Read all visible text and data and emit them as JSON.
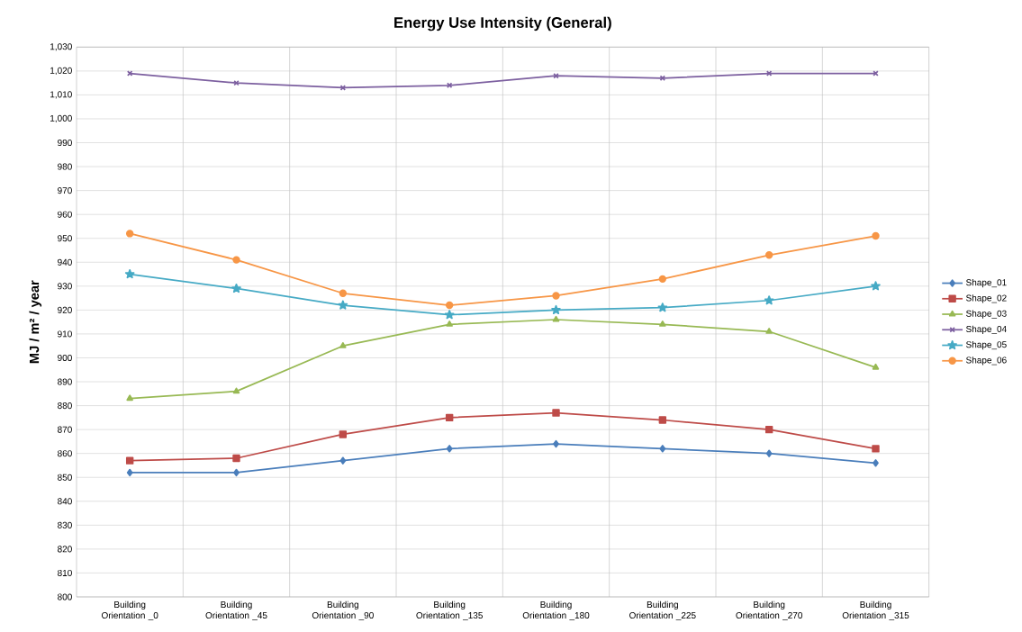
{
  "chart_data": {
    "type": "line",
    "title": "Energy Use Intensity (General)",
    "ylabel": "MJ / m² / year",
    "categories": [
      "Building Orientation _0",
      "Building Orientation _45",
      "Building Orientation _90",
      "Building Orientation _135",
      "Building Orientation _180",
      "Building Orientation _225",
      "Building Orientation _270",
      "Building Orientation _315"
    ],
    "series": [
      {
        "name": "Shape_01",
        "color": "#4a7ebb",
        "marker": "diamond",
        "values": [
          852,
          852,
          857,
          862,
          864,
          862,
          860,
          856
        ]
      },
      {
        "name": "Shape_02",
        "color": "#be4b48",
        "marker": "square",
        "values": [
          857,
          858,
          868,
          875,
          877,
          874,
          870,
          862
        ]
      },
      {
        "name": "Shape_03",
        "color": "#98b954",
        "marker": "triangle",
        "values": [
          883,
          886,
          905,
          914,
          916,
          914,
          911,
          896
        ]
      },
      {
        "name": "Shape_04",
        "color": "#7d60a0",
        "marker": "cross",
        "values": [
          1019,
          1015,
          1013,
          1014,
          1018,
          1017,
          1019,
          1019
        ]
      },
      {
        "name": "Shape_05",
        "color": "#46aac5",
        "marker": "star",
        "values": [
          935,
          929,
          922,
          918,
          920,
          921,
          924,
          930
        ]
      },
      {
        "name": "Shape_06",
        "color": "#f79646",
        "marker": "circle",
        "values": [
          952,
          941,
          927,
          922,
          926,
          933,
          943,
          951
        ]
      }
    ],
    "ylim": [
      800,
      1030
    ],
    "yticks": [
      800,
      810,
      820,
      830,
      840,
      850,
      860,
      870,
      880,
      890,
      900,
      910,
      920,
      930,
      940,
      950,
      960,
      970,
      980,
      990,
      {
        "value": 1000,
        "label": "1,000"
      },
      {
        "value": 1010,
        "label": "1,010"
      },
      {
        "value": 1020,
        "label": "1,020"
      },
      {
        "value": 1030,
        "label": "1,030"
      }
    ],
    "grid": true,
    "legend": "right",
    "line_style": "solid"
  }
}
